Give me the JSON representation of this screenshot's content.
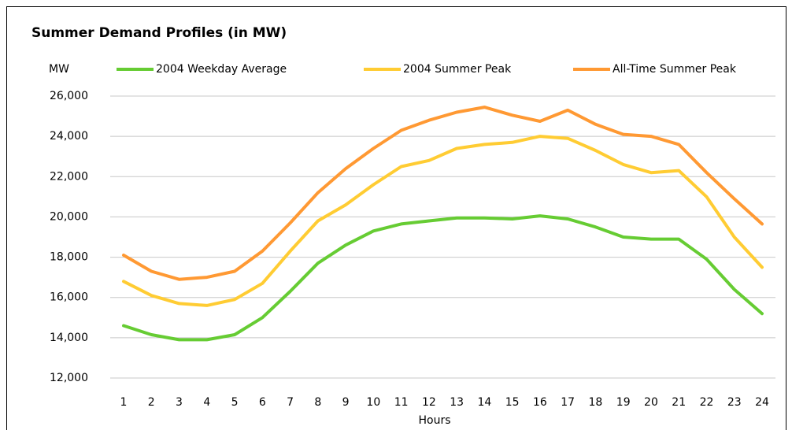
{
  "chart_data": {
    "type": "line",
    "title": "Summer Demand Profiles (in MW)",
    "y_label": "MW",
    "x_label": "Hours",
    "categories": [
      "1",
      "2",
      "3",
      "4",
      "5",
      "6",
      "7",
      "8",
      "9",
      "10",
      "11",
      "12",
      "13",
      "14",
      "15",
      "16",
      "17",
      "18",
      "19",
      "20",
      "21",
      "22",
      "23",
      "24"
    ],
    "series": [
      {
        "name": "2004 Weekday Average",
        "color": "#66cc33",
        "values": [
          14600,
          14150,
          13900,
          13900,
          14150,
          15000,
          16300,
          17700,
          18600,
          19300,
          19650,
          19800,
          19950,
          19950,
          19900,
          20050,
          19900,
          19500,
          19000,
          18900,
          18900,
          17900,
          16400,
          15200
        ]
      },
      {
        "name": "2004 Summer Peak",
        "color": "#ffcc33",
        "values": [
          16800,
          16100,
          15700,
          15600,
          15900,
          16700,
          18300,
          19800,
          20600,
          21600,
          22500,
          22800,
          23400,
          23600,
          23700,
          24000,
          23900,
          23300,
          22600,
          22200,
          22300,
          21000,
          19000,
          17500
        ]
      },
      {
        "name": "All-Time Summer Peak",
        "color": "#ff9933",
        "values": [
          18100,
          17300,
          16900,
          17000,
          17300,
          18300,
          19700,
          21200,
          22400,
          23400,
          24300,
          24800,
          25200,
          25450,
          25050,
          24750,
          25300,
          24600,
          24100,
          24000,
          23600,
          22200,
          20900,
          19650
        ]
      }
    ],
    "ylim": [
      12000,
      26000
    ],
    "yticks": [
      {
        "value": 12000,
        "label": "12,000"
      },
      {
        "value": 14000,
        "label": "14,000"
      },
      {
        "value": 16000,
        "label": "16,000"
      },
      {
        "value": 18000,
        "label": "18,000"
      },
      {
        "value": 20000,
        "label": "20,000"
      },
      {
        "value": 22000,
        "label": "22,000"
      },
      {
        "value": 24000,
        "label": "24,000"
      },
      {
        "value": 26000,
        "label": "26,000"
      }
    ],
    "grid": true
  }
}
